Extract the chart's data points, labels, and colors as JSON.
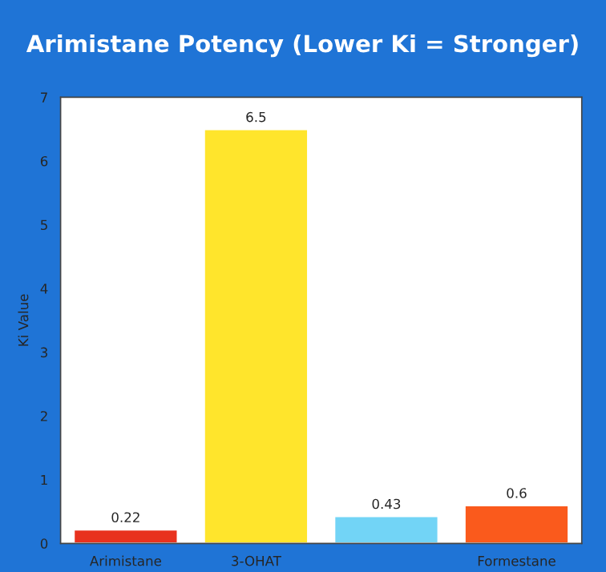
{
  "chart_data": {
    "type": "bar",
    "title": "Arimistane Potency (Lower Ki = Stronger)",
    "ylabel": "Ki Value",
    "categories": [
      "Arimistane",
      "3-OHAT",
      null,
      "Formestane"
    ],
    "values": [
      0.22,
      6.5,
      0.43,
      0.6
    ],
    "colors": [
      "#e8321e",
      "#ffe52c",
      "#72d4f6",
      "#fa5a1c"
    ],
    "ylim": [
      0,
      7
    ],
    "yticks": [
      0,
      1,
      2,
      3,
      4,
      5,
      6,
      7
    ],
    "grid": false,
    "data_labels": true
  }
}
